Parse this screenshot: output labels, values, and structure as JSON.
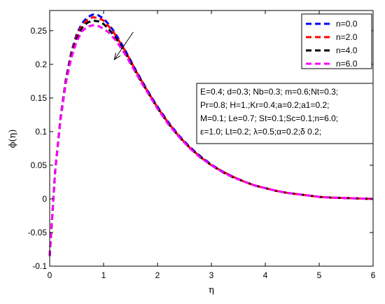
{
  "chart_data": {
    "type": "line",
    "title": "",
    "xlabel": "η",
    "ylabel": "ϕ(η)",
    "xlim": [
      0,
      6
    ],
    "ylim": [
      -0.1,
      0.28
    ],
    "x_ticks": [
      0,
      1,
      2,
      3,
      4,
      5,
      6
    ],
    "x_tick_labels": [
      "0",
      "1",
      "2",
      "3",
      "4",
      "5",
      "6"
    ],
    "y_ticks": [
      -0.1,
      -0.05,
      0,
      0.05,
      0.1,
      0.15,
      0.2,
      0.25
    ],
    "y_tick_labels": [
      "-0.1",
      "-0.05",
      "0",
      "0.05",
      "0.1",
      "0.15",
      "0.2",
      "0.25"
    ],
    "grid": false,
    "legend_position": "top-right",
    "x": [
      0,
      0.1,
      0.2,
      0.3,
      0.4,
      0.5,
      0.6,
      0.7,
      0.8,
      0.9,
      1.0,
      1.1,
      1.2,
      1.3,
      1.4,
      1.5,
      1.6,
      1.7,
      1.8,
      1.9,
      2.0,
      2.2,
      2.4,
      2.6,
      2.8,
      3.0,
      3.2,
      3.4,
      3.6,
      3.8,
      4.0,
      4.2,
      4.4,
      4.6,
      4.8,
      5.0,
      5.2,
      5.4,
      5.6,
      5.8,
      6.0
    ],
    "series": [
      {
        "name": "n=0.0",
        "color": "#0000ff",
        "values": [
          -0.085,
          0.04,
          0.12,
          0.178,
          0.218,
          0.245,
          0.261,
          0.27,
          0.274,
          0.273,
          0.268,
          0.259,
          0.248,
          0.235,
          0.221,
          0.206,
          0.191,
          0.177,
          0.163,
          0.15,
          0.137,
          0.114,
          0.094,
          0.077,
          0.063,
          0.051,
          0.041,
          0.033,
          0.026,
          0.02,
          0.016,
          0.012,
          0.009,
          0.007,
          0.005,
          0.003,
          0.002,
          0.0015,
          0.001,
          0.0005,
          0.0
        ]
      },
      {
        "name": "n=2.0",
        "color": "#ff0000",
        "values": [
          -0.085,
          0.04,
          0.119,
          0.176,
          0.215,
          0.242,
          0.258,
          0.266,
          0.27,
          0.269,
          0.265,
          0.256,
          0.246,
          0.233,
          0.22,
          0.205,
          0.19,
          0.176,
          0.162,
          0.149,
          0.136,
          0.113,
          0.093,
          0.076,
          0.062,
          0.05,
          0.041,
          0.033,
          0.026,
          0.02,
          0.016,
          0.012,
          0.009,
          0.007,
          0.005,
          0.003,
          0.002,
          0.0015,
          0.001,
          0.0005,
          0.0
        ]
      },
      {
        "name": "n=4.0",
        "color": "#000000",
        "values": [
          -0.085,
          0.04,
          0.118,
          0.174,
          0.212,
          0.238,
          0.254,
          0.262,
          0.265,
          0.264,
          0.26,
          0.252,
          0.242,
          0.23,
          0.217,
          0.203,
          0.188,
          0.174,
          0.161,
          0.148,
          0.135,
          0.112,
          0.092,
          0.076,
          0.062,
          0.05,
          0.04,
          0.032,
          0.026,
          0.02,
          0.016,
          0.012,
          0.009,
          0.007,
          0.005,
          0.003,
          0.002,
          0.0015,
          0.001,
          0.0005,
          0.0
        ]
      },
      {
        "name": "n=6.0",
        "color": "#ff00ff",
        "values": [
          -0.085,
          0.04,
          0.117,
          0.172,
          0.209,
          0.234,
          0.249,
          0.256,
          0.258,
          0.257,
          0.253,
          0.247,
          0.238,
          0.227,
          0.215,
          0.201,
          0.187,
          0.173,
          0.16,
          0.147,
          0.134,
          0.111,
          0.092,
          0.075,
          0.061,
          0.05,
          0.04,
          0.032,
          0.026,
          0.02,
          0.016,
          0.012,
          0.009,
          0.007,
          0.005,
          0.003,
          0.002,
          0.0015,
          0.001,
          0.0005,
          0.0
        ]
      }
    ],
    "annotation": {
      "lines": [
        "E=0.4; d=0.3; Nb=0.3; m=0.6;Nt=0.3;",
        "Pr=0.8; H=1.;Kr=0.4;a=0.2;a1=0.2;",
        "M=0.1; Le=0.7; St=0.1;Sc=0.1;n=6.0;",
        "ε=1.0; Lt=0.2; λ=0.5;α=0.2;δ 0.2;"
      ]
    },
    "arrow": {
      "from": [
        1.55,
        0.248
      ],
      "to": [
        1.2,
        0.207
      ]
    }
  }
}
